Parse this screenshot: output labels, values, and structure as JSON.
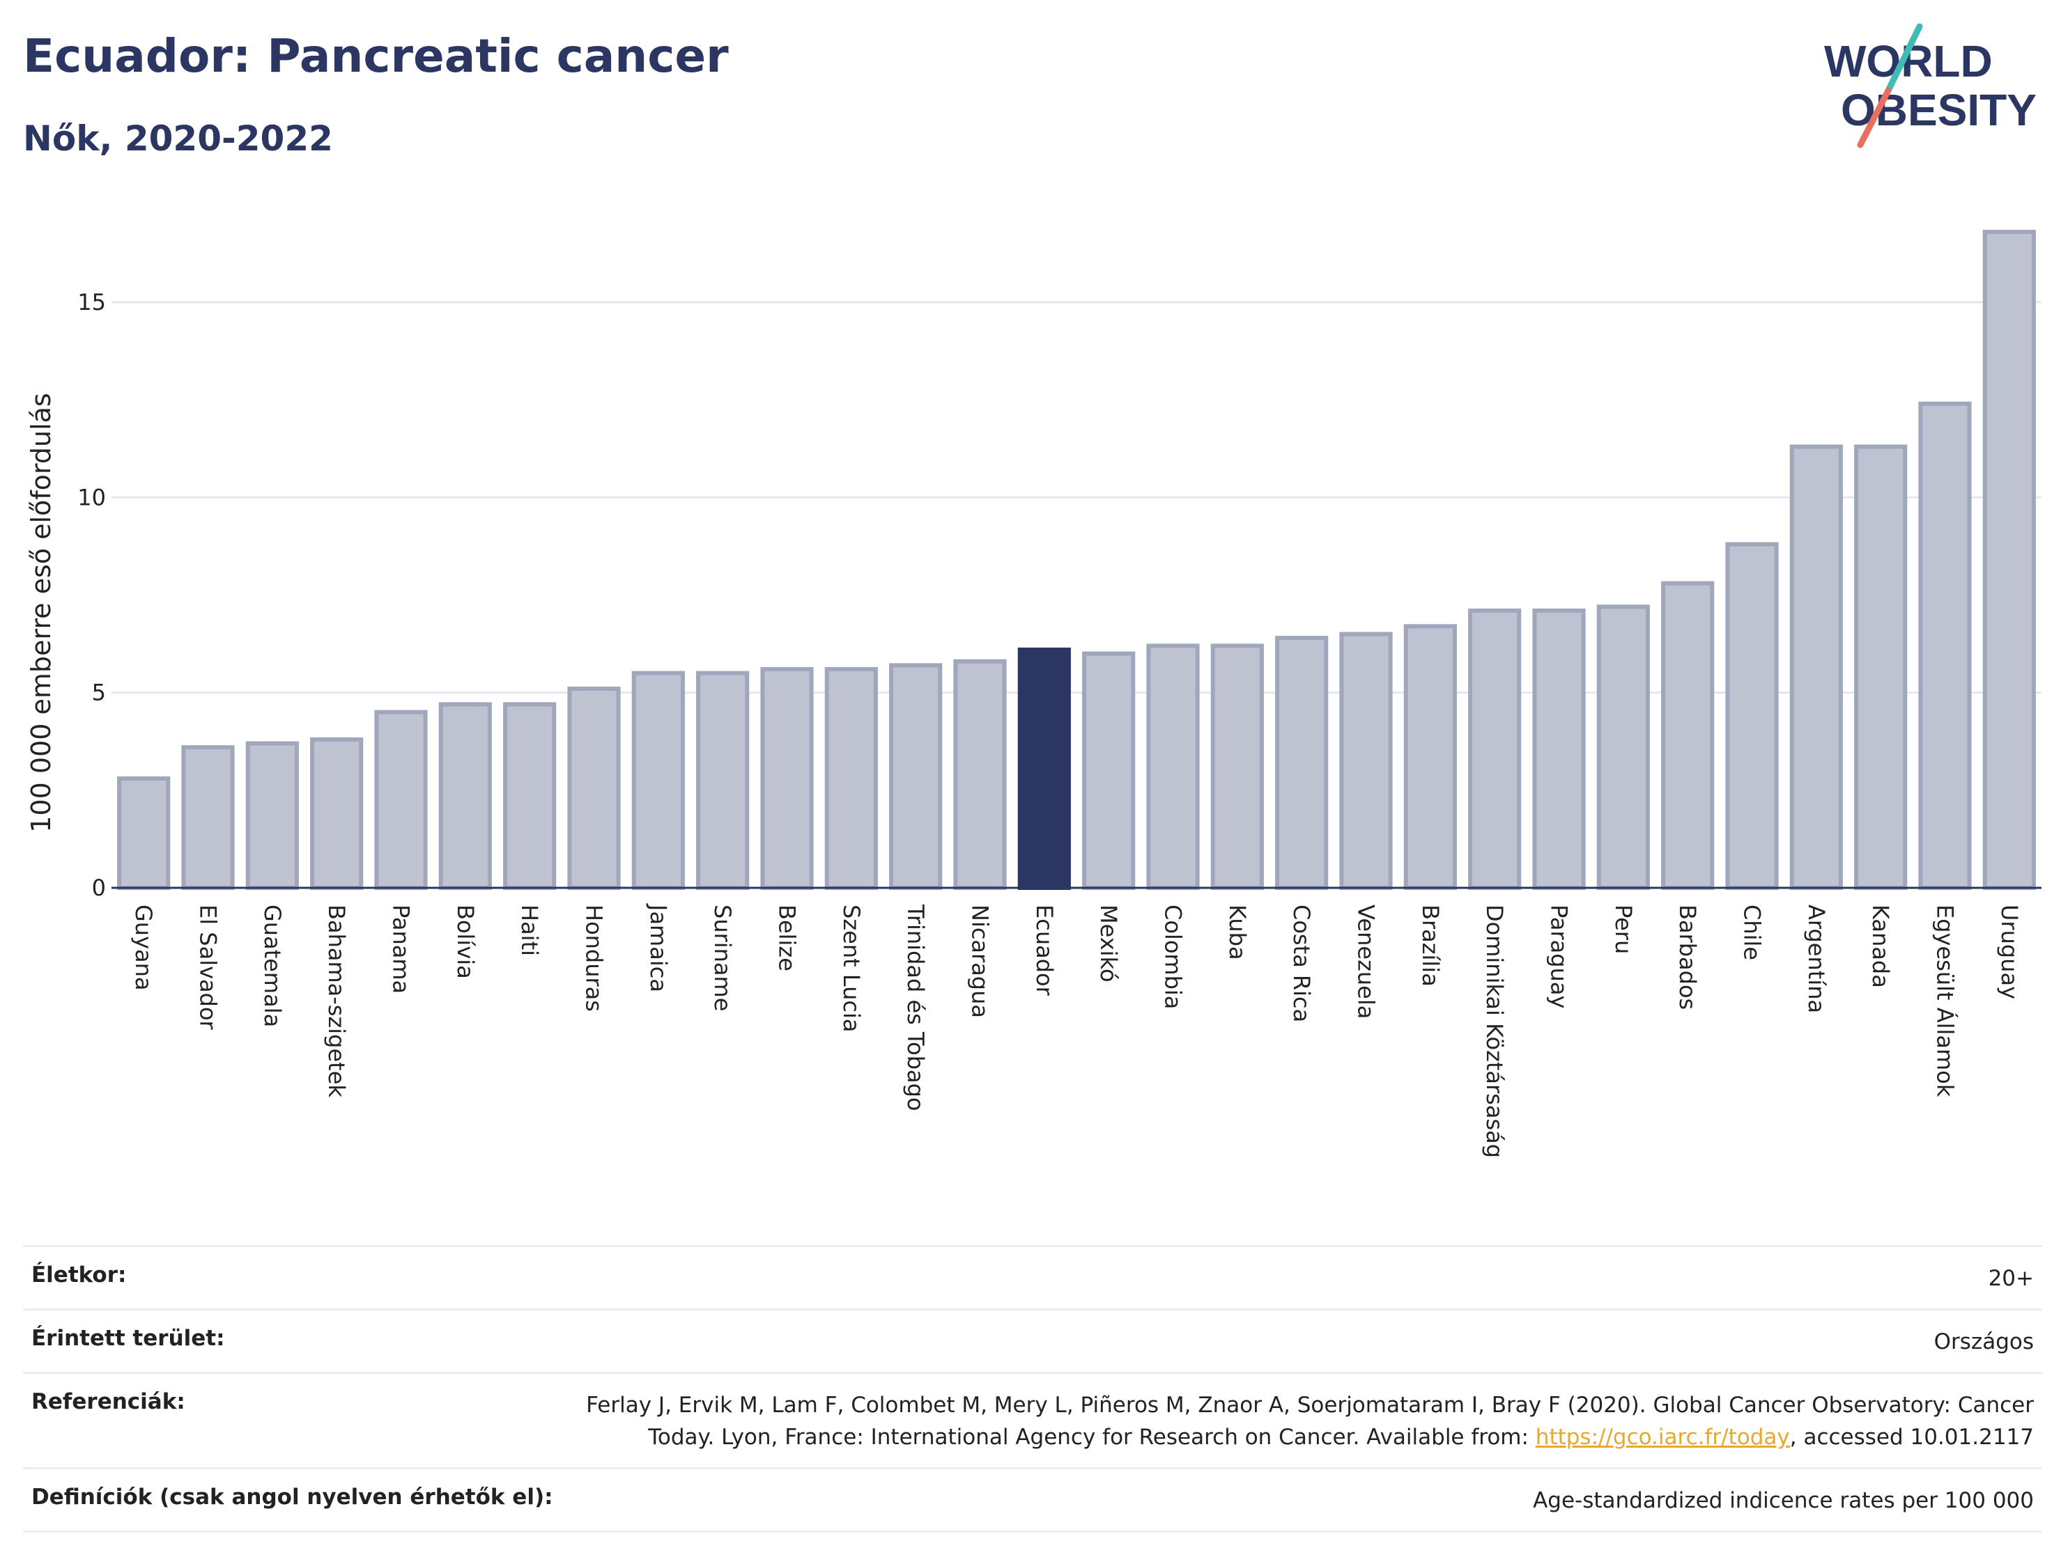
{
  "header": {
    "title": "Ecuador: Pancreatic cancer",
    "subtitle": "Nők, 2020-2022"
  },
  "logo": {
    "line1": "WORLD",
    "line2": "OBESITY",
    "colors": {
      "text": "#2b3663",
      "slash_teal": "#3fbcb3",
      "slash_coral": "#e8705f"
    }
  },
  "chart_data": {
    "type": "bar",
    "title": "",
    "xlabel": "",
    "ylabel": "100 000 emberre eső előfordulás",
    "ylim": [
      0,
      17.3
    ],
    "yticks": [
      0,
      5,
      10,
      15
    ],
    "grid": true,
    "highlight": "Ecuador",
    "colors": {
      "bar": "#bfc3d1",
      "bar_edge": "#a0a6bb",
      "highlight": "#2b3663",
      "grid": "#e6e7ee",
      "axis": "#2b3663"
    },
    "categories": [
      "Guyana",
      "El Salvador",
      "Guatemala",
      "Bahama-szigetek",
      "Panama",
      "Bolívia",
      "Haiti",
      "Honduras",
      "Jamaica",
      "Suriname",
      "Belize",
      "Szent Lucia",
      "Trinidad és Tobago",
      "Nicaragua",
      "Ecuador",
      "Mexikó",
      "Colombia",
      "Kuba",
      "Costa Rica",
      "Venezuela",
      "Brazília",
      "Dominikai Köztársaság",
      "Paraguay",
      "Peru",
      "Barbados",
      "Chile",
      "Argentína",
      "Kanada",
      "Egyesült Államok",
      "Uruguay"
    ],
    "values": [
      2.8,
      3.6,
      3.7,
      3.8,
      4.5,
      4.7,
      4.7,
      5.1,
      5.5,
      5.5,
      5.6,
      5.6,
      5.7,
      5.8,
      6.1,
      6.0,
      6.2,
      6.2,
      6.4,
      6.5,
      6.7,
      7.1,
      7.1,
      7.2,
      7.8,
      8.8,
      11.3,
      11.3,
      12.4,
      16.8
    ]
  },
  "meta": {
    "rows": [
      {
        "label": "Életkor:",
        "value": "20+"
      },
      {
        "label": "Érintett terület:",
        "value": "Országos"
      }
    ],
    "references": {
      "label": "Referenciák:",
      "text_before": "Ferlay J, Ervik M, Lam F, Colombet M, Mery L, Piñeros M, Znaor A, Soerjomataram I, Bray F (2020). Global Cancer Observatory: Cancer Today. Lyon, France: International Agency for Research on Cancer. Available from: ",
      "link": "https://gco.iarc.fr/today",
      "text_after": ", accessed 10.01.2117"
    },
    "definitions": {
      "label": "Definíciók (csak angol nyelven érhetők el):",
      "value": "Age-standardized indicence rates per 100 000"
    }
  }
}
